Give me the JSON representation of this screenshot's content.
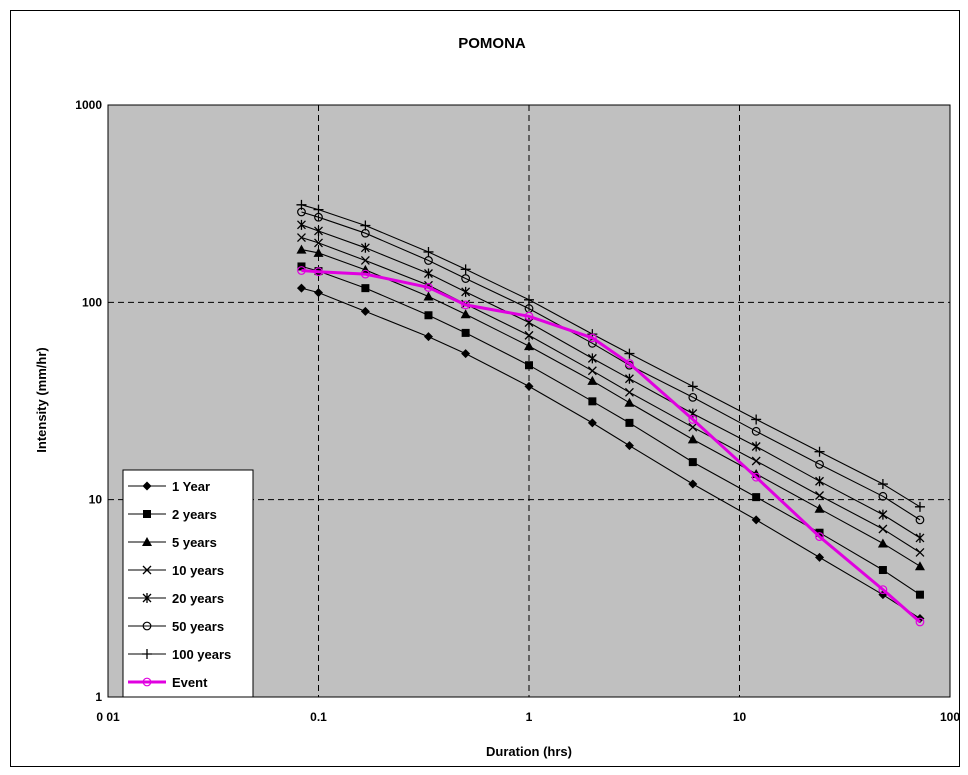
{
  "chart_data": {
    "type": "line",
    "title": "POMONA",
    "xlabel": "Duration (hrs)",
    "ylabel": "Intensity (mm/hr)",
    "xscale": "log",
    "yscale": "log",
    "xlim": [
      0.01,
      100
    ],
    "ylim": [
      1,
      1000
    ],
    "x_tick_labels": [
      "0 01",
      "0.1",
      "1",
      "10",
      "100"
    ],
    "y_tick_labels": [
      "1",
      "10",
      "100",
      "1000"
    ],
    "grid": "dashed major gridlines",
    "legend_position": "bottom-left",
    "plot_background": "#c0c0c0",
    "series": [
      {
        "name": "1 Year",
        "marker": "diamond",
        "color": "#000000",
        "x": [
          0.083,
          0.1,
          0.167,
          0.333,
          0.5,
          1,
          2,
          3,
          6,
          12,
          24,
          48,
          72
        ],
        "y": [
          118,
          112,
          90,
          67,
          55,
          37.5,
          24.5,
          18.8,
          12,
          7.9,
          5.1,
          3.3,
          2.5
        ]
      },
      {
        "name": "2 years",
        "marker": "square",
        "color": "#000000",
        "x": [
          0.083,
          0.1,
          0.167,
          0.333,
          0.5,
          1,
          2,
          3,
          6,
          12,
          24,
          48,
          72
        ],
        "y": [
          152,
          144,
          118,
          86,
          70,
          48,
          31.5,
          24.5,
          15.5,
          10.3,
          6.8,
          4.4,
          3.3
        ]
      },
      {
        "name": "5 years",
        "marker": "triangle",
        "color": "#000000",
        "x": [
          0.083,
          0.1,
          0.167,
          0.333,
          0.5,
          1,
          2,
          3,
          6,
          12,
          24,
          48,
          72
        ],
        "y": [
          185,
          178,
          146,
          107,
          87,
          60,
          40,
          31,
          20.2,
          13.5,
          9,
          6,
          4.6
        ]
      },
      {
        "name": "10 years",
        "marker": "x",
        "color": "#000000",
        "x": [
          0.083,
          0.1,
          0.167,
          0.333,
          0.5,
          1,
          2,
          3,
          6,
          12,
          24,
          48,
          72
        ],
        "y": [
          213,
          200,
          163,
          122,
          98,
          68,
          45,
          35,
          23.3,
          15.7,
          10.5,
          7.1,
          5.4
        ]
      },
      {
        "name": "20 years",
        "marker": "asterisk",
        "color": "#000000",
        "x": [
          0.083,
          0.1,
          0.167,
          0.333,
          0.5,
          1,
          2,
          3,
          6,
          12,
          24,
          48,
          72
        ],
        "y": [
          247,
          230,
          189,
          140,
          113,
          79,
          52,
          41,
          27.3,
          18.6,
          12.4,
          8.4,
          6.4
        ]
      },
      {
        "name": "50 years",
        "marker": "circle-open",
        "color": "#000000",
        "x": [
          0.083,
          0.1,
          0.167,
          0.333,
          0.5,
          1,
          2,
          3,
          6,
          12,
          24,
          48,
          72
        ],
        "y": [
          287,
          270,
          224,
          163,
          132,
          93,
          62,
          48,
          33,
          22.2,
          15.1,
          10.4,
          7.9
        ]
      },
      {
        "name": "100 years",
        "marker": "plus",
        "color": "#000000",
        "x": [
          0.083,
          0.1,
          0.167,
          0.333,
          0.5,
          1,
          2,
          3,
          6,
          12,
          24,
          48,
          72
        ],
        "y": [
          312,
          295,
          245,
          180,
          147,
          103,
          69,
          55,
          37.5,
          25.5,
          17.5,
          12,
          9.2
        ]
      },
      {
        "name": "Event",
        "marker": "circle-open",
        "color": "#e000e0",
        "x": [
          0.083,
          0.1,
          0.167,
          0.333,
          0.5,
          1,
          2,
          3,
          6,
          12,
          24,
          48,
          72
        ],
        "y": [
          145,
          143,
          139,
          119,
          97,
          85,
          66,
          49,
          25.5,
          13,
          6.5,
          3.5,
          2.4
        ]
      }
    ]
  }
}
